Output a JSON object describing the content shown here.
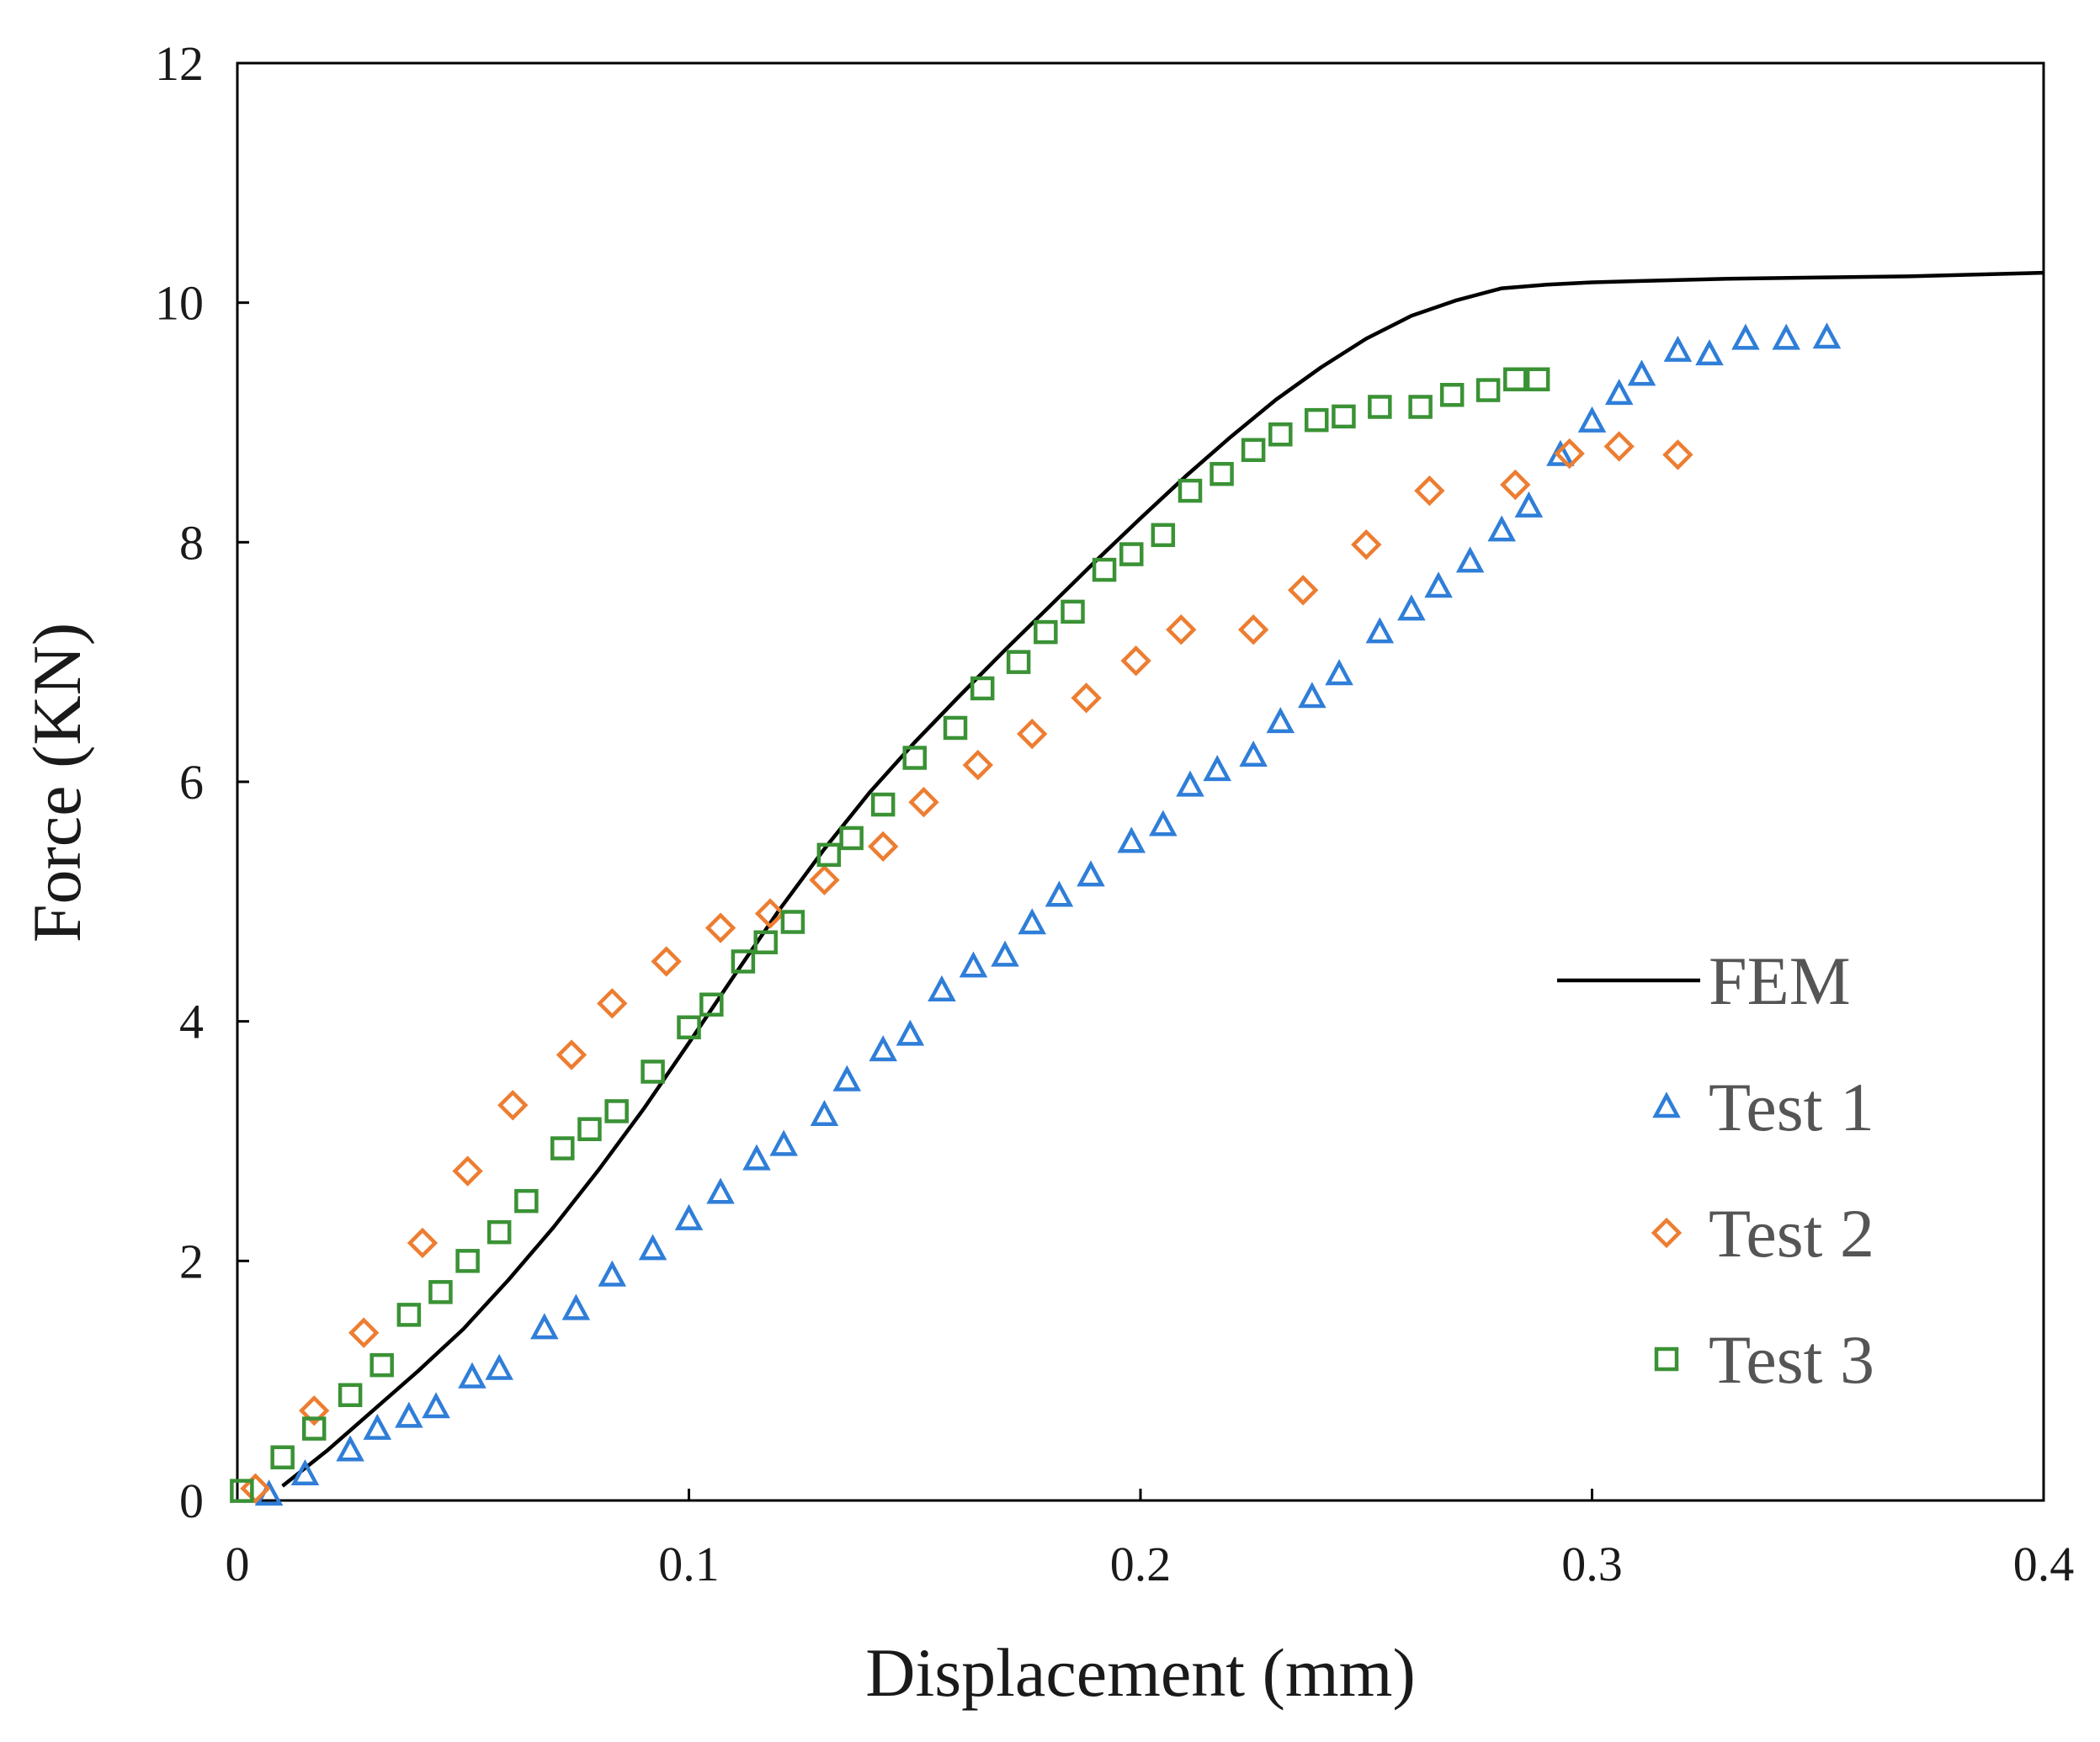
{
  "chart_data": {
    "type": "scatter",
    "title": "",
    "xlabel": "Displacement (mm)",
    "ylabel": "Force (KN)",
    "xlim": [
      0,
      0.4
    ],
    "ylim": [
      0,
      12
    ],
    "xticks": [
      0,
      0.1,
      0.2,
      0.3,
      0.4
    ],
    "yticks": [
      0,
      2,
      4,
      6,
      8,
      10,
      12
    ],
    "xtick_labels": [
      "0",
      "0.1",
      "0.2",
      "0.3",
      "0.4"
    ],
    "ytick_labels": [
      "0",
      "2",
      "4",
      "6",
      "8",
      "10",
      "12"
    ],
    "grid": false,
    "legend_position": "right",
    "series": [
      {
        "name": "FEM",
        "kind": "line",
        "color": "#000000",
        "x": [
          0.01,
          0.02,
          0.03,
          0.04,
          0.05,
          0.06,
          0.07,
          0.08,
          0.09,
          0.1,
          0.11,
          0.12,
          0.13,
          0.14,
          0.15,
          0.16,
          0.17,
          0.18,
          0.19,
          0.2,
          0.21,
          0.22,
          0.23,
          0.24,
          0.25,
          0.26,
          0.27,
          0.28,
          0.29,
          0.3,
          0.31,
          0.32,
          0.33,
          0.35,
          0.37,
          0.4
        ],
        "y": [
          0.12,
          0.42,
          0.75,
          1.08,
          1.43,
          1.84,
          2.28,
          2.76,
          3.27,
          3.82,
          4.38,
          4.93,
          5.44,
          5.91,
          6.33,
          6.72,
          7.1,
          7.47,
          7.84,
          8.2,
          8.55,
          8.88,
          9.19,
          9.46,
          9.7,
          9.89,
          10.02,
          10.12,
          10.15,
          10.17,
          10.18,
          10.19,
          10.2,
          10.21,
          10.22,
          10.25
        ]
      },
      {
        "name": "Test 1",
        "kind": "marker",
        "marker": "triangle",
        "color": "#2f7ed8",
        "x": [
          0.007,
          0.015,
          0.025,
          0.031,
          0.038,
          0.044,
          0.052,
          0.058,
          0.068,
          0.075,
          0.083,
          0.092,
          0.1,
          0.107,
          0.115,
          0.121,
          0.13,
          0.135,
          0.143,
          0.149,
          0.156,
          0.163,
          0.17,
          0.176,
          0.182,
          0.189,
          0.198,
          0.205,
          0.211,
          0.217,
          0.225,
          0.231,
          0.238,
          0.244,
          0.253,
          0.26,
          0.266,
          0.273,
          0.28,
          0.286,
          0.293,
          0.3,
          0.306,
          0.311,
          0.319,
          0.326,
          0.334,
          0.343,
          0.352
        ],
        "y": [
          0.05,
          0.22,
          0.42,
          0.6,
          0.7,
          0.78,
          1.03,
          1.1,
          1.44,
          1.6,
          1.88,
          2.1,
          2.35,
          2.57,
          2.85,
          2.97,
          3.22,
          3.51,
          3.76,
          3.89,
          4.26,
          4.46,
          4.55,
          4.82,
          5.05,
          5.22,
          5.5,
          5.64,
          5.97,
          6.1,
          6.22,
          6.5,
          6.71,
          6.9,
          7.25,
          7.44,
          7.63,
          7.84,
          8.1,
          8.3,
          8.73,
          9.01,
          9.24,
          9.4,
          9.6,
          9.57,
          9.7,
          9.7,
          9.71
        ]
      },
      {
        "name": "Test 2",
        "kind": "marker",
        "marker": "diamond",
        "color": "#ed7d31",
        "x": [
          0.004,
          0.017,
          0.028,
          0.041,
          0.051,
          0.061,
          0.074,
          0.083,
          0.095,
          0.107,
          0.118,
          0.13,
          0.143,
          0.152,
          0.164,
          0.176,
          0.188,
          0.199,
          0.209,
          0.225,
          0.236,
          0.25,
          0.264,
          0.283,
          0.295,
          0.306,
          0.319
        ],
        "y": [
          0.1,
          0.75,
          1.4,
          2.15,
          2.75,
          3.3,
          3.72,
          4.15,
          4.5,
          4.78,
          4.9,
          5.18,
          5.46,
          5.83,
          6.14,
          6.4,
          6.7,
          7.01,
          7.27,
          7.27,
          7.6,
          7.98,
          8.43,
          8.48,
          8.74,
          8.8,
          8.73
        ]
      },
      {
        "name": "Test 3",
        "kind": "marker",
        "marker": "square",
        "color": "#3a9235",
        "x": [
          0.001,
          0.01,
          0.017,
          0.025,
          0.032,
          0.038,
          0.045,
          0.051,
          0.058,
          0.064,
          0.072,
          0.078,
          0.084,
          0.092,
          0.1,
          0.105,
          0.112,
          0.117,
          0.123,
          0.131,
          0.136,
          0.143,
          0.15,
          0.159,
          0.165,
          0.173,
          0.179,
          0.185,
          0.192,
          0.198,
          0.205,
          0.211,
          0.218,
          0.225,
          0.231,
          0.239,
          0.245,
          0.253,
          0.262,
          0.269,
          0.277,
          0.283,
          0.288
        ],
        "y": [
          0.08,
          0.36,
          0.6,
          0.88,
          1.13,
          1.55,
          1.74,
          2.0,
          2.24,
          2.5,
          2.94,
          3.1,
          3.25,
          3.58,
          3.95,
          4.14,
          4.5,
          4.66,
          4.83,
          5.39,
          5.53,
          5.81,
          6.2,
          6.45,
          6.78,
          7.0,
          7.25,
          7.42,
          7.77,
          7.9,
          8.06,
          8.43,
          8.57,
          8.77,
          8.9,
          9.02,
          9.05,
          9.13,
          9.13,
          9.23,
          9.27,
          9.36,
          9.36
        ]
      }
    ]
  }
}
